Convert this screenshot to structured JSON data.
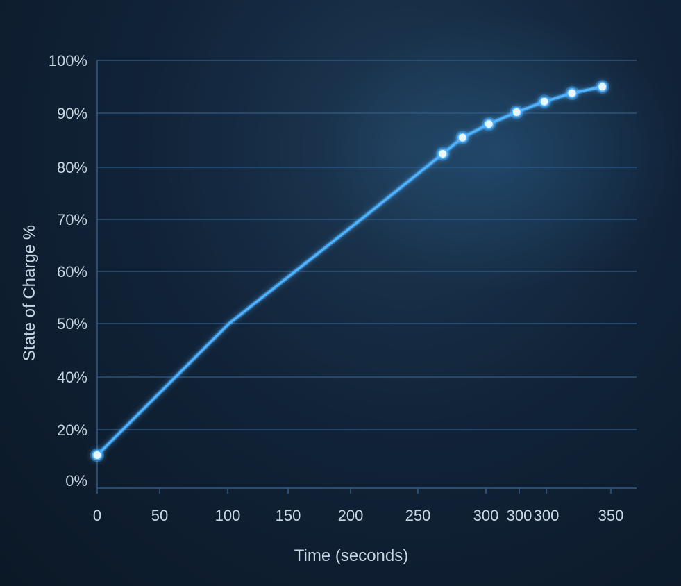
{
  "chart_data": {
    "type": "line",
    "title": "",
    "xlabel": "Time (seconds)",
    "ylabel": "State of Charge %",
    "x_tick_labels": [
      "0",
      "50",
      "100",
      "150",
      "200",
      "250",
      "300",
      "300",
      "300",
      "350"
    ],
    "y_tick_labels": [
      "0%",
      "20%",
      "40%",
      "50%",
      "60%",
      "70%",
      "80%",
      "90%",
      "100%"
    ],
    "grid": "horizontal",
    "series": [
      {
        "color": "#4fb3ff",
        "line_points": [
          {
            "x": 0,
            "y": 10
          },
          {
            "x": 100,
            "y": 50
          },
          {
            "x": 200,
            "y": 70
          },
          {
            "x": 262,
            "y": 82.5
          }
        ],
        "marked_points": [
          {
            "x": 0,
            "y": 10
          },
          {
            "x": 262,
            "y": 82.5
          },
          {
            "x": 277,
            "y": 85.5
          },
          {
            "x": 297,
            "y": 88
          },
          {
            "x": 318,
            "y": 90.2
          },
          {
            "x": 339,
            "y": 92.2
          },
          {
            "x": 360,
            "y": 93.8
          },
          {
            "x": 383,
            "y": 95
          }
        ]
      }
    ]
  }
}
